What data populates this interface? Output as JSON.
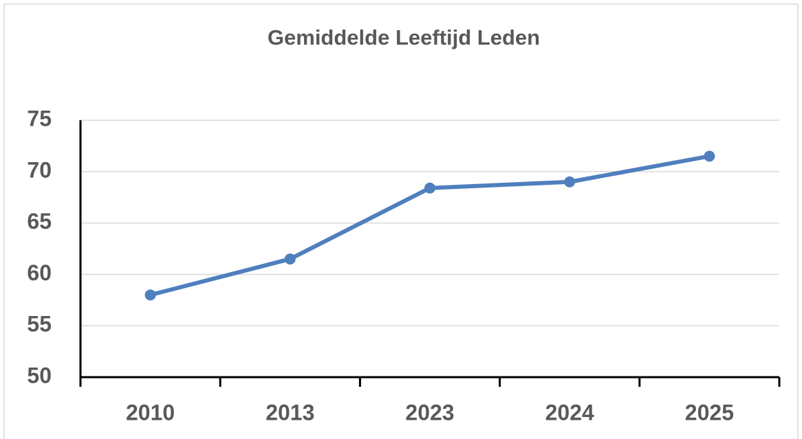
{
  "chart_data": {
    "type": "line",
    "title": "Gemiddelde Leeftijd Leden",
    "categories": [
      "2010",
      "2013",
      "2023",
      "2024",
      "2025"
    ],
    "series": [
      {
        "name": "Gemiddelde Leeftijd",
        "color": "#4f7fbe",
        "values": [
          58.0,
          61.5,
          68.4,
          69.0,
          71.5
        ]
      }
    ],
    "ylim": [
      50,
      75
    ],
    "yticks": [
      50,
      55,
      60,
      65,
      70,
      75
    ],
    "grid": true
  }
}
